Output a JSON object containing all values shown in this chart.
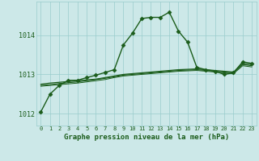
{
  "background_color": "#cce8e8",
  "line_color": "#1a5c1a",
  "grid_color": "#99cccc",
  "xlabel": "Graphe pression niveau de la mer (hPa)",
  "ylim": [
    1011.7,
    1014.85
  ],
  "xlim": [
    -0.5,
    23.5
  ],
  "yticks": [
    1012,
    1013,
    1014
  ],
  "xticks": [
    0,
    1,
    2,
    3,
    4,
    5,
    6,
    7,
    8,
    9,
    10,
    11,
    12,
    13,
    14,
    15,
    16,
    17,
    18,
    19,
    20,
    21,
    22,
    23
  ],
  "series": [
    {
      "x": [
        0,
        1,
        2,
        3,
        4,
        5,
        6,
        7,
        8,
        9,
        10,
        11,
        12,
        13,
        14,
        15,
        16,
        17,
        18,
        19,
        20,
        21,
        22,
        23
      ],
      "y": [
        1012.05,
        1012.5,
        1012.72,
        1012.85,
        1012.85,
        1012.92,
        1012.98,
        1013.05,
        1013.12,
        1013.75,
        1014.05,
        1014.42,
        1014.45,
        1014.45,
        1014.58,
        1014.1,
        1013.82,
        1013.18,
        1013.12,
        1013.08,
        1013.0,
        1013.04,
        1013.32,
        1013.28
      ],
      "marker": "D",
      "markersize": 2.5,
      "linewidth": 1.0,
      "linestyle": "-"
    },
    {
      "x": [
        0,
        1,
        2,
        3,
        4,
        5,
        6,
        7,
        8,
        9,
        10,
        11,
        12,
        13,
        14,
        15,
        16,
        17,
        18,
        19,
        20,
        21,
        22,
        23
      ],
      "y": [
        1012.75,
        1012.78,
        1012.8,
        1012.82,
        1012.84,
        1012.86,
        1012.88,
        1012.92,
        1012.96,
        1013.0,
        1013.02,
        1013.04,
        1013.06,
        1013.08,
        1013.1,
        1013.12,
        1013.13,
        1013.14,
        1013.12,
        1013.1,
        1013.08,
        1013.06,
        1013.28,
        1013.25
      ],
      "marker": null,
      "markersize": 0,
      "linewidth": 0.9,
      "linestyle": "-"
    },
    {
      "x": [
        0,
        1,
        2,
        3,
        4,
        5,
        6,
        7,
        8,
        9,
        10,
        11,
        12,
        13,
        14,
        15,
        16,
        17,
        18,
        19,
        20,
        21,
        22,
        23
      ],
      "y": [
        1012.72,
        1012.74,
        1012.77,
        1012.79,
        1012.81,
        1012.84,
        1012.87,
        1012.9,
        1012.94,
        1012.98,
        1013.0,
        1013.02,
        1013.04,
        1013.06,
        1013.08,
        1013.1,
        1013.11,
        1013.12,
        1013.1,
        1013.08,
        1013.06,
        1013.04,
        1013.25,
        1013.22
      ],
      "marker": null,
      "markersize": 0,
      "linewidth": 0.8,
      "linestyle": "-"
    },
    {
      "x": [
        0,
        1,
        2,
        3,
        4,
        5,
        6,
        7,
        8,
        9,
        10,
        11,
        12,
        13,
        14,
        15,
        16,
        17,
        18,
        19,
        20,
        21,
        22,
        23
      ],
      "y": [
        1012.7,
        1012.72,
        1012.74,
        1012.76,
        1012.78,
        1012.81,
        1012.84,
        1012.87,
        1012.92,
        1012.96,
        1012.98,
        1013.0,
        1013.02,
        1013.04,
        1013.06,
        1013.08,
        1013.09,
        1013.1,
        1013.08,
        1013.06,
        1013.04,
        1013.02,
        1013.22,
        1013.19
      ],
      "marker": null,
      "markersize": 0,
      "linewidth": 0.7,
      "linestyle": "-"
    }
  ]
}
